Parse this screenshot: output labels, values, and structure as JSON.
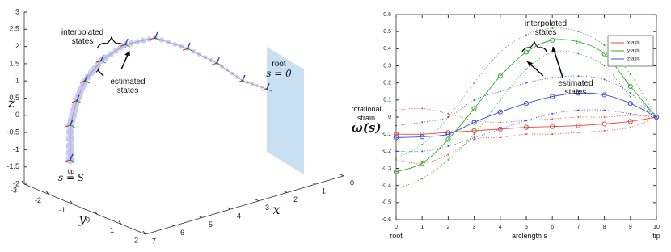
{
  "chart_data": [
    {
      "type": "line3d",
      "x": [
        0.14,
        1.0,
        1.91,
        2.94,
        4.09,
        5.14,
        6.0,
        6.57,
        6.86,
        7.0,
        7.0
      ],
      "y": [
        -1,
        -1,
        -1,
        -1,
        -1,
        -1,
        -1,
        -1,
        -1,
        -1.1,
        -1.1
      ],
      "z": [
        -0.31,
        0.14,
        0.87,
        1.54,
        2.13,
        2.19,
        1.93,
        1.48,
        0.97,
        0.27,
        -0.74
      ],
      "xlim": [
        0,
        7
      ],
      "ylim": [
        -3,
        2
      ],
      "zlim": [
        -2,
        3
      ],
      "xticks": [
        0,
        1,
        2,
        3,
        4,
        5,
        6,
        7
      ],
      "yticks": [
        -3,
        -2,
        -1,
        0,
        1,
        2
      ],
      "zticks": [
        -2,
        -1.5,
        -1,
        -0.5,
        0,
        0.5,
        1,
        1.5,
        2,
        2.5,
        3
      ],
      "xlabel": "x",
      "ylabel": "y",
      "zlabel": "z",
      "color": "#c9c9f2",
      "annotations": {
        "interpolated": "interpolated states",
        "estimated": "estimated states",
        "root": "root",
        "root_s": "s = 0",
        "tip": "tip",
        "tip_s": "s = S"
      }
    },
    {
      "type": "line",
      "x": [
        0,
        1,
        2,
        3,
        4,
        5,
        6,
        7,
        8,
        9,
        10
      ],
      "xlim": [
        0,
        10
      ],
      "ylim": [
        -0.6,
        0.6
      ],
      "xticks": [
        0,
        1,
        2,
        3,
        4,
        5,
        6,
        7,
        8,
        9,
        10
      ],
      "yticks": [
        -0.6,
        -0.5,
        -0.4,
        -0.3,
        -0.2,
        -0.1,
        0,
        0.1,
        0.2,
        0.3,
        0.4,
        0.5,
        0.6
      ],
      "series": [
        {
          "name": "x-axis",
          "color": "#e8453c",
          "values": [
            -0.1,
            -0.1,
            -0.09,
            -0.08,
            -0.07,
            -0.06,
            -0.055,
            -0.05,
            -0.04,
            -0.025,
            0
          ],
          "upper": [
            0.04,
            0.05,
            0.02,
            -0.02,
            -0.03,
            -0.02,
            -0.01,
            0.0,
            0.0,
            0.01,
            0
          ],
          "lower": [
            -0.25,
            -0.27,
            -0.22,
            -0.13,
            -0.12,
            -0.1,
            -0.1,
            -0.09,
            -0.08,
            -0.06,
            0
          ]
        },
        {
          "name": "y-axis",
          "color": "#3aa832",
          "values": [
            -0.32,
            -0.27,
            -0.13,
            0.05,
            0.24,
            0.38,
            0.45,
            0.44,
            0.37,
            0.18,
            0
          ],
          "upper": [
            -0.24,
            -0.16,
            0.0,
            0.2,
            0.38,
            0.48,
            0.52,
            0.5,
            0.42,
            0.25,
            0
          ],
          "lower": [
            -0.42,
            -0.36,
            -0.25,
            -0.1,
            0.1,
            0.28,
            0.38,
            0.37,
            0.3,
            0.12,
            0
          ]
        },
        {
          "name": "z-axis",
          "color": "#3b4fd6",
          "values": [
            -0.12,
            -0.115,
            -0.1,
            -0.03,
            0.03,
            0.08,
            0.12,
            0.14,
            0.13,
            0.08,
            0
          ],
          "upper": [
            -0.05,
            -0.03,
            0.0,
            0.1,
            0.15,
            0.2,
            0.23,
            0.24,
            0.22,
            0.14,
            0
          ],
          "lower": [
            -0.2,
            -0.2,
            -0.17,
            -0.12,
            -0.07,
            -0.02,
            0.02,
            0.04,
            0.04,
            0.02,
            0
          ]
        }
      ],
      "ylabel": "rotational strain",
      "ylabel_symbol": "ω(s)",
      "xlabel": "arclength s",
      "x_start_label": "root",
      "x_end_label": "tip",
      "legend": "top-right",
      "annotations": {
        "interpolated": "interpolated states",
        "estimated": "estimated states"
      }
    }
  ]
}
